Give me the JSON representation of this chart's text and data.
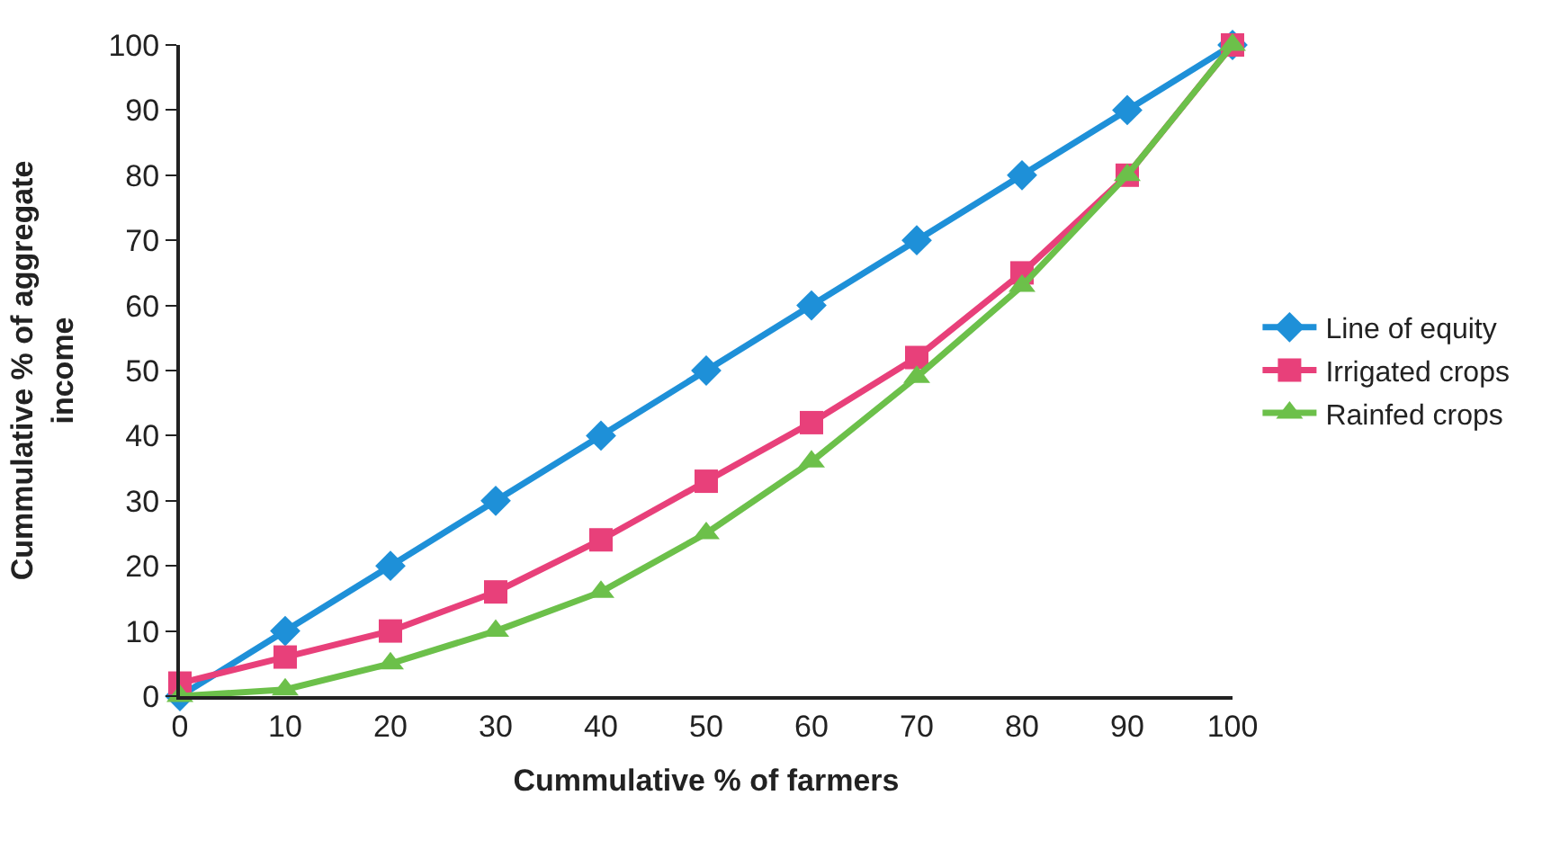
{
  "chart_data": {
    "type": "line",
    "xlabel": "Cummulative % of farmers",
    "ylabel": "Cummulative % of aggregate income",
    "x": [
      0,
      10,
      20,
      30,
      40,
      50,
      60,
      70,
      80,
      90,
      100
    ],
    "xlim": [
      0,
      100
    ],
    "xticks": [
      0,
      10,
      20,
      30,
      40,
      50,
      60,
      70,
      80,
      90,
      100
    ],
    "ylim": [
      0,
      100
    ],
    "yticks": [
      0,
      10,
      20,
      30,
      40,
      50,
      60,
      70,
      80,
      90,
      100
    ],
    "legend": "right",
    "series": [
      {
        "name": "Line of equity",
        "color": "#1e90d8",
        "marker": "diamond",
        "values": [
          0,
          10,
          20,
          30,
          40,
          50,
          60,
          70,
          80,
          90,
          100
        ]
      },
      {
        "name": "Irrigated crops",
        "color": "#e8407a",
        "marker": "square",
        "values": [
          2,
          6,
          10,
          16,
          24,
          33,
          42,
          52,
          65,
          80,
          100
        ]
      },
      {
        "name": "Rainfed crops",
        "color": "#6cc04a",
        "marker": "triangle",
        "values": [
          0,
          1,
          5,
          10,
          16,
          25,
          36,
          49,
          63,
          80,
          100
        ]
      }
    ]
  }
}
